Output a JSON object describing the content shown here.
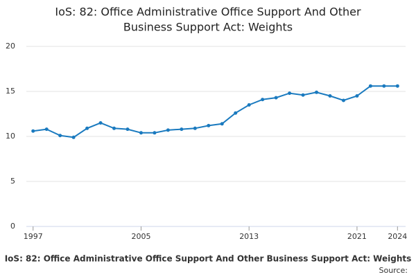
{
  "chart_data": {
    "type": "line",
    "title": [
      "IoS: 82: Office Administrative Office Support And Other",
      "Business Support Act: Weights"
    ],
    "x": [
      1997,
      1998,
      1999,
      2000,
      2001,
      2002,
      2003,
      2004,
      2005,
      2006,
      2007,
      2008,
      2009,
      2010,
      2011,
      2012,
      2013,
      2014,
      2015,
      2016,
      2017,
      2018,
      2019,
      2020,
      2021,
      2022,
      2023,
      2024
    ],
    "series": [
      {
        "name": "IoS: 82: Office Administrative Office Support And Other Business Support Act: Weights",
        "color": "#1a7abf",
        "values": [
          10.6,
          10.8,
          10.1,
          9.9,
          10.9,
          11.5,
          10.9,
          10.8,
          10.4,
          10.4,
          10.7,
          10.8,
          10.9,
          11.2,
          11.4,
          12.6,
          13.5,
          14.1,
          14.3,
          14.8,
          14.6,
          14.9,
          14.5,
          14.0,
          14.5,
          15.6,
          15.6,
          15.6
        ]
      }
    ],
    "xlim": [
      1996.5,
      2024.6
    ],
    "xticks": [
      1997,
      2005,
      2013,
      2021,
      2024
    ],
    "ylim": [
      0,
      20
    ],
    "yticks": [
      0,
      5,
      10,
      15,
      20
    ],
    "grid": true,
    "source": "Source:"
  }
}
